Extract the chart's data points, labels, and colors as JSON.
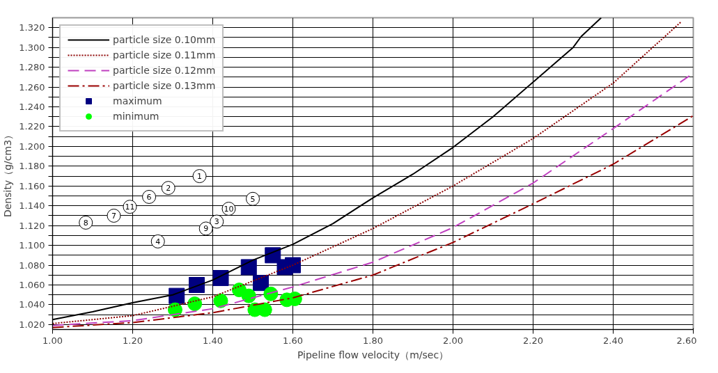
{
  "chart_data": {
    "type": "line",
    "xlabel": "Pipeline flow velocity（m/sec）",
    "ylabel": "Density（g/cm3）",
    "xlim": [
      1.0,
      2.6
    ],
    "ylim": [
      1.015,
      1.33
    ],
    "xticks": [
      {
        "value": 1.0,
        "label": "1.00"
      },
      {
        "value": 1.2,
        "label": "1.20"
      },
      {
        "value": 1.4,
        "label": "1.40"
      },
      {
        "value": 1.6,
        "label": "1.60"
      },
      {
        "value": 1.8,
        "label": "1.80"
      },
      {
        "value": 2.0,
        "label": "2.00"
      },
      {
        "value": 2.2,
        "label": "2.20"
      },
      {
        "value": 2.4,
        "label": "2.40"
      },
      {
        "value": 2.6,
        "label": "2.60"
      }
    ],
    "yticks": [
      {
        "value": 1.02,
        "label": "1.020"
      },
      {
        "value": 1.03,
        "label": null
      },
      {
        "value": 1.04,
        "label": "1.040"
      },
      {
        "value": 1.05,
        "label": null
      },
      {
        "value": 1.06,
        "label": "1.060"
      },
      {
        "value": 1.07,
        "label": null
      },
      {
        "value": 1.08,
        "label": "1.080"
      },
      {
        "value": 1.09,
        "label": null
      },
      {
        "value": 1.1,
        "label": "1.100"
      },
      {
        "value": 1.11,
        "label": null
      },
      {
        "value": 1.12,
        "label": "1.120"
      },
      {
        "value": 1.13,
        "label": null
      },
      {
        "value": 1.14,
        "label": "1.140"
      },
      {
        "value": 1.15,
        "label": null
      },
      {
        "value": 1.16,
        "label": "1.160"
      },
      {
        "value": 1.17,
        "label": null
      },
      {
        "value": 1.18,
        "label": "1.180"
      },
      {
        "value": 1.19,
        "label": null
      },
      {
        "value": 1.2,
        "label": "1.200"
      },
      {
        "value": 1.21,
        "label": null
      },
      {
        "value": 1.22,
        "label": "1.220"
      },
      {
        "value": 1.23,
        "label": null
      },
      {
        "value": 1.24,
        "label": "1.240"
      },
      {
        "value": 1.25,
        "label": null
      },
      {
        "value": 1.26,
        "label": "1.260"
      },
      {
        "value": 1.27,
        "label": null
      },
      {
        "value": 1.28,
        "label": "1.280"
      },
      {
        "value": 1.29,
        "label": null
      },
      {
        "value": 1.3,
        "label": "1.300"
      },
      {
        "value": 1.31,
        "label": null
      },
      {
        "value": 1.32,
        "label": "1.320"
      }
    ],
    "grid": true,
    "legend": "top left",
    "series": [
      {
        "name": "particle size 0.10mm",
        "line_style": "solid",
        "color": "#000000",
        "x": [
          1.0,
          1.1,
          1.2,
          1.3,
          1.4,
          1.5,
          1.6,
          1.7,
          1.8,
          1.9,
          2.0,
          2.1,
          2.2,
          2.3,
          2.32,
          2.37
        ],
        "values": [
          1.025,
          1.033,
          1.042,
          1.05,
          1.065,
          1.085,
          1.101,
          1.122,
          1.148,
          1.172,
          1.199,
          1.23,
          1.265,
          1.3,
          1.311,
          1.33
        ]
      },
      {
        "name": "particle size 0.11mm",
        "line_style": "dotted",
        "color": "#8b0000",
        "x": [
          1.0,
          1.2,
          1.4,
          1.6,
          1.8,
          2.0,
          2.2,
          2.4,
          2.57
        ],
        "values": [
          1.021,
          1.029,
          1.048,
          1.08,
          1.117,
          1.16,
          1.208,
          1.264,
          1.326
        ]
      },
      {
        "name": "particle size 0.12mm",
        "line_style": "dashed",
        "color": "#c040c0",
        "x": [
          1.0,
          1.2,
          1.4,
          1.6,
          1.8,
          2.0,
          2.2,
          2.4,
          2.6
        ],
        "values": [
          1.019,
          1.024,
          1.036,
          1.058,
          1.083,
          1.118,
          1.163,
          1.218,
          1.274
        ]
      },
      {
        "name": "particle size 0.13mm",
        "line_style": "dashdot",
        "color": "#990000",
        "x": [
          1.0,
          1.2,
          1.4,
          1.6,
          1.8,
          2.0,
          2.2,
          2.4,
          2.6
        ],
        "values": [
          1.017,
          1.022,
          1.032,
          1.047,
          1.07,
          1.103,
          1.142,
          1.182,
          1.231
        ]
      },
      {
        "name": "maximum",
        "type": "scatter",
        "marker": "square",
        "color": "#000080",
        "x": [
          1.31,
          1.36,
          1.42,
          1.49,
          1.52,
          1.55,
          1.58,
          1.6
        ],
        "values": [
          1.049,
          1.06,
          1.067,
          1.078,
          1.062,
          1.09,
          1.078,
          1.08
        ]
      },
      {
        "name": "minimum",
        "type": "scatter",
        "marker": "circle",
        "color": "#00ff00",
        "x": [
          1.306,
          1.355,
          1.42,
          1.466,
          1.49,
          1.505,
          1.53,
          1.545,
          1.585,
          1.605
        ],
        "values": [
          1.035,
          1.041,
          1.044,
          1.055,
          1.049,
          1.035,
          1.035,
          1.051,
          1.045,
          1.046
        ]
      },
      {
        "type": "scatter",
        "marker": "circle",
        "color": "#ffffff",
        "x": [
          1.367,
          1.289,
          1.41,
          1.263,
          1.5,
          1.241,
          1.153,
          1.083,
          1.383,
          1.44,
          1.193
        ],
        "values": [
          1.17,
          1.158,
          1.124,
          1.104,
          1.147,
          1.149,
          1.13,
          1.123,
          1.117,
          1.137,
          1.139
        ]
      }
    ],
    "annotations": [
      {
        "text": "1",
        "x": 1.367,
        "y": 1.17
      },
      {
        "text": "2",
        "x": 1.289,
        "y": 1.158
      },
      {
        "text": "3",
        "x": 1.41,
        "y": 1.124
      },
      {
        "text": "4",
        "x": 1.263,
        "y": 1.104
      },
      {
        "text": "5",
        "x": 1.5,
        "y": 1.147
      },
      {
        "text": "6",
        "x": 1.241,
        "y": 1.149
      },
      {
        "text": "7",
        "x": 1.153,
        "y": 1.13
      },
      {
        "text": "8",
        "x": 1.083,
        "y": 1.123
      },
      {
        "text": "9",
        "x": 1.383,
        "y": 1.117
      },
      {
        "text": "10",
        "x": 1.44,
        "y": 1.137
      },
      {
        "text": "11",
        "x": 1.193,
        "y": 1.139
      }
    ]
  }
}
